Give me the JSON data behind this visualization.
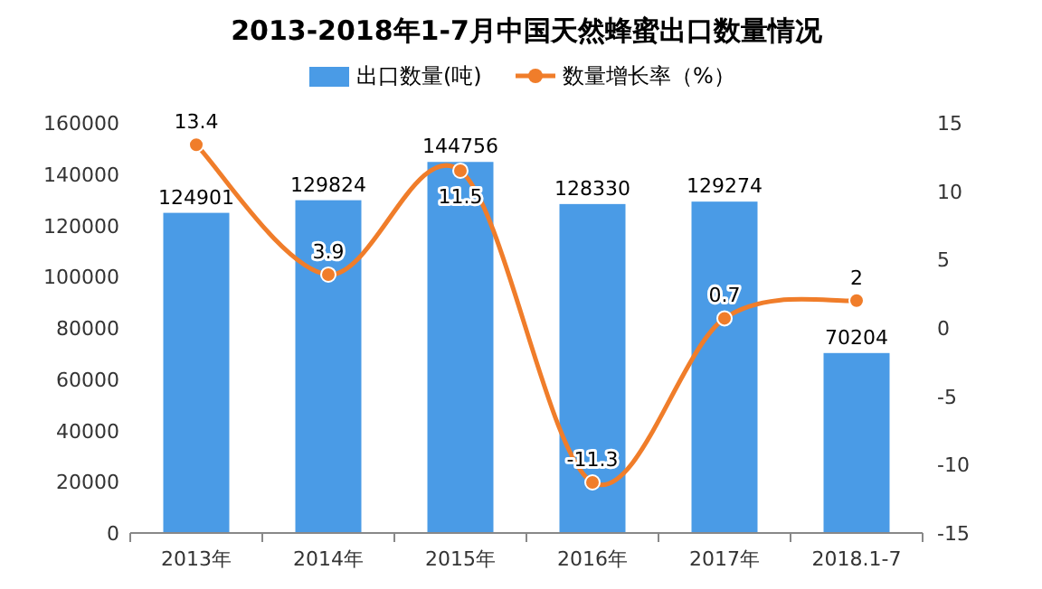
{
  "chart_data": {
    "type": "bar",
    "title": "2013-2018年1-7月中国天然蜂蜜出口数量情况",
    "categories": [
      "2013年",
      "2014年",
      "2015年",
      "2016年",
      "2017年",
      "2018.1-7"
    ],
    "series": [
      {
        "name": "出口数量(吨)",
        "color": "#4a9be6",
        "values": [
          124901,
          129824,
          144756,
          128330,
          129274,
          70204
        ]
      },
      {
        "name": "数量增长率（%）",
        "type": "line",
        "axis": "y2",
        "color": "#f07d2a",
        "marker": "circle",
        "values": [
          13.4,
          3.9,
          11.5,
          -11.3,
          0.7,
          2
        ]
      }
    ],
    "ylim": [
      0,
      160000
    ],
    "yticks": [
      0,
      20000,
      40000,
      60000,
      80000,
      100000,
      120000,
      140000,
      160000
    ],
    "y2lim": [
      -15,
      15
    ],
    "y2ticks": [
      -15,
      -10,
      -5,
      0,
      5,
      10,
      15
    ],
    "data_labels": true,
    "legend": "top",
    "grid": false
  }
}
